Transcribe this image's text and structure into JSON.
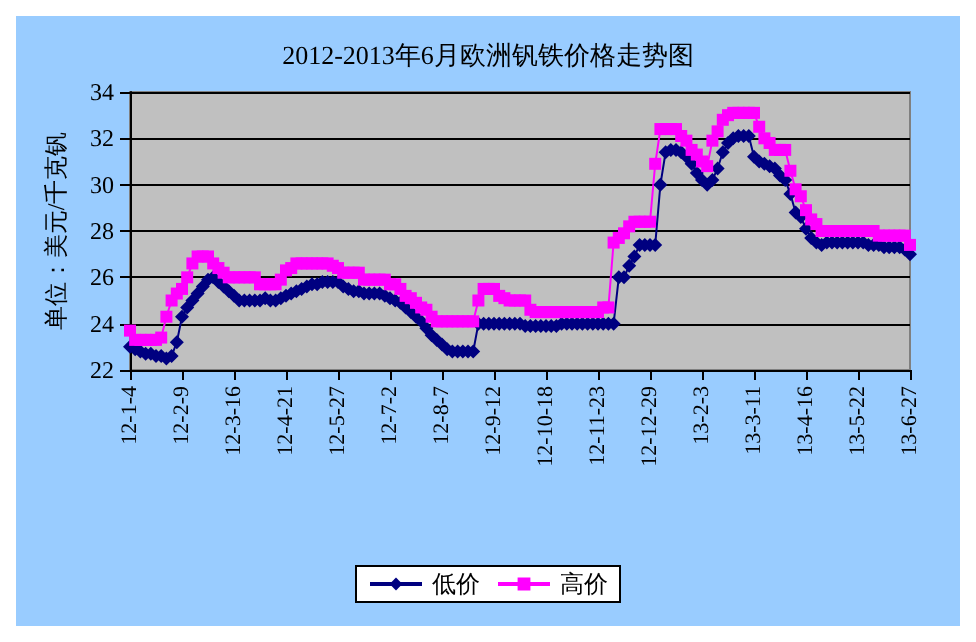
{
  "chart_data": {
    "type": "line",
    "title": "2012-2013年6月欧洲钒铁价格走势图",
    "ylabel": "单位：美元/千克钒",
    "categories": [
      "12-1-4",
      null,
      null,
      null,
      null,
      null,
      null,
      null,
      null,
      null,
      "12-2-9",
      null,
      null,
      null,
      null,
      null,
      null,
      null,
      null,
      null,
      "12-3-16",
      null,
      null,
      null,
      null,
      null,
      null,
      null,
      null,
      null,
      "12-4-21",
      null,
      null,
      null,
      null,
      null,
      null,
      null,
      null,
      null,
      "12-5-27",
      null,
      null,
      null,
      null,
      null,
      null,
      null,
      null,
      null,
      "12-7-2",
      null,
      null,
      null,
      null,
      null,
      null,
      null,
      null,
      null,
      "12-8-7",
      null,
      null,
      null,
      null,
      null,
      null,
      null,
      null,
      null,
      "12-9-12",
      null,
      null,
      null,
      null,
      null,
      null,
      null,
      null,
      null,
      "12-10-18",
      null,
      null,
      null,
      null,
      null,
      null,
      null,
      null,
      null,
      "12-11-23",
      null,
      null,
      null,
      null,
      null,
      null,
      null,
      null,
      null,
      "12-12-29",
      null,
      null,
      null,
      null,
      null,
      null,
      null,
      null,
      null,
      "13-2-3",
      null,
      null,
      null,
      null,
      null,
      null,
      null,
      null,
      null,
      "13-3-11",
      null,
      null,
      null,
      null,
      null,
      null,
      null,
      null,
      null,
      "13-4-16",
      null,
      null,
      null,
      null,
      null,
      null,
      null,
      null,
      null,
      "13-5-22",
      null,
      null,
      null,
      null,
      null,
      null,
      null,
      null,
      null,
      "13-6-27"
    ],
    "series": [
      {
        "name": "低价",
        "color": "#000080",
        "marker": "diamond",
        "values": [
          23.0,
          22.9,
          22.8,
          22.7,
          22.7,
          22.6,
          22.6,
          22.5,
          22.6,
          23.2,
          24.3,
          24.7,
          25.0,
          25.3,
          25.6,
          25.9,
          26.0,
          25.8,
          25.6,
          25.4,
          25.2,
          25.0,
          25.0,
          25.0,
          25.0,
          25.0,
          25.1,
          25.0,
          25.0,
          25.1,
          25.2,
          25.3,
          25.4,
          25.5,
          25.6,
          25.7,
          25.7,
          25.8,
          25.8,
          25.8,
          25.8,
          25.6,
          25.5,
          25.4,
          25.4,
          25.3,
          25.3,
          25.3,
          25.3,
          25.2,
          25.1,
          25.0,
          24.9,
          24.7,
          24.5,
          24.3,
          24.1,
          23.8,
          23.5,
          23.3,
          23.1,
          22.9,
          22.8,
          22.8,
          22.8,
          22.8,
          22.8,
          24.0,
          24.0,
          24.0,
          24.0,
          24.0,
          24.0,
          24.0,
          24.0,
          24.0,
          23.9,
          23.9,
          23.9,
          23.9,
          23.9,
          23.9,
          23.9,
          24.0,
          24.0,
          24.0,
          24.0,
          24.0,
          24.0,
          24.0,
          24.0,
          24.0,
          24.0,
          24.0,
          26.0,
          26.0,
          26.5,
          26.9,
          27.4,
          27.4,
          27.4,
          27.4,
          30.0,
          31.4,
          31.5,
          31.5,
          31.4,
          31.2,
          30.9,
          30.5,
          30.2,
          30.0,
          30.2,
          30.7,
          31.4,
          31.8,
          32.0,
          32.1,
          32.1,
          32.1,
          31.2,
          31.0,
          30.9,
          30.8,
          30.7,
          30.4,
          30.2,
          29.6,
          28.8,
          28.6,
          28.1,
          27.7,
          27.5,
          27.4,
          27.5,
          27.5,
          27.5,
          27.5,
          27.5,
          27.5,
          27.5,
          27.5,
          27.4,
          27.4,
          27.4,
          27.3,
          27.3,
          27.3,
          27.3,
          27.2,
          27.0
        ]
      },
      {
        "name": "高价",
        "color": "#ff00ff",
        "marker": "square",
        "values": [
          23.7,
          23.3,
          23.3,
          23.3,
          23.3,
          23.3,
          23.4,
          24.3,
          25.0,
          25.3,
          25.5,
          26.0,
          26.6,
          26.9,
          26.9,
          26.9,
          26.6,
          26.4,
          26.2,
          26.0,
          26.0,
          26.0,
          26.0,
          26.0,
          26.0,
          25.7,
          25.7,
          25.7,
          25.7,
          25.9,
          26.3,
          26.4,
          26.6,
          26.6,
          26.6,
          26.6,
          26.6,
          26.6,
          26.6,
          26.5,
          26.4,
          26.2,
          26.2,
          26.2,
          26.2,
          25.9,
          25.9,
          25.9,
          25.9,
          25.9,
          25.7,
          25.7,
          25.5,
          25.2,
          25.1,
          24.9,
          24.7,
          24.6,
          24.3,
          24.1,
          24.1,
          24.1,
          24.1,
          24.1,
          24.1,
          24.1,
          24.1,
          25.0,
          25.5,
          25.5,
          25.5,
          25.2,
          25.1,
          25.0,
          25.0,
          25.0,
          25.0,
          24.6,
          24.5,
          24.5,
          24.5,
          24.5,
          24.5,
          24.5,
          24.5,
          24.5,
          24.5,
          24.5,
          24.5,
          24.5,
          24.5,
          24.7,
          24.7,
          27.5,
          27.7,
          27.9,
          28.2,
          28.4,
          28.4,
          28.4,
          28.4,
          30.9,
          32.4,
          32.4,
          32.4,
          32.4,
          32.1,
          31.9,
          31.5,
          31.3,
          31.0,
          30.8,
          31.9,
          32.3,
          32.8,
          33.0,
          33.1,
          33.1,
          33.1,
          33.1,
          33.1,
          32.5,
          32.0,
          31.8,
          31.5,
          31.5,
          31.5,
          30.6,
          29.8,
          29.5,
          28.9,
          28.5,
          28.3,
          28.0,
          28.0,
          28.0,
          28.0,
          28.0,
          28.0,
          28.0,
          28.0,
          28.0,
          28.0,
          28.0,
          27.8,
          27.8,
          27.8,
          27.8,
          27.8,
          27.8,
          27.4
        ]
      }
    ],
    "ylim": [
      22,
      34
    ],
    "yticks": [
      22,
      24,
      26,
      28,
      30,
      32,
      34
    ],
    "grid": "y",
    "legend": "bottom",
    "line_style": "solid"
  }
}
